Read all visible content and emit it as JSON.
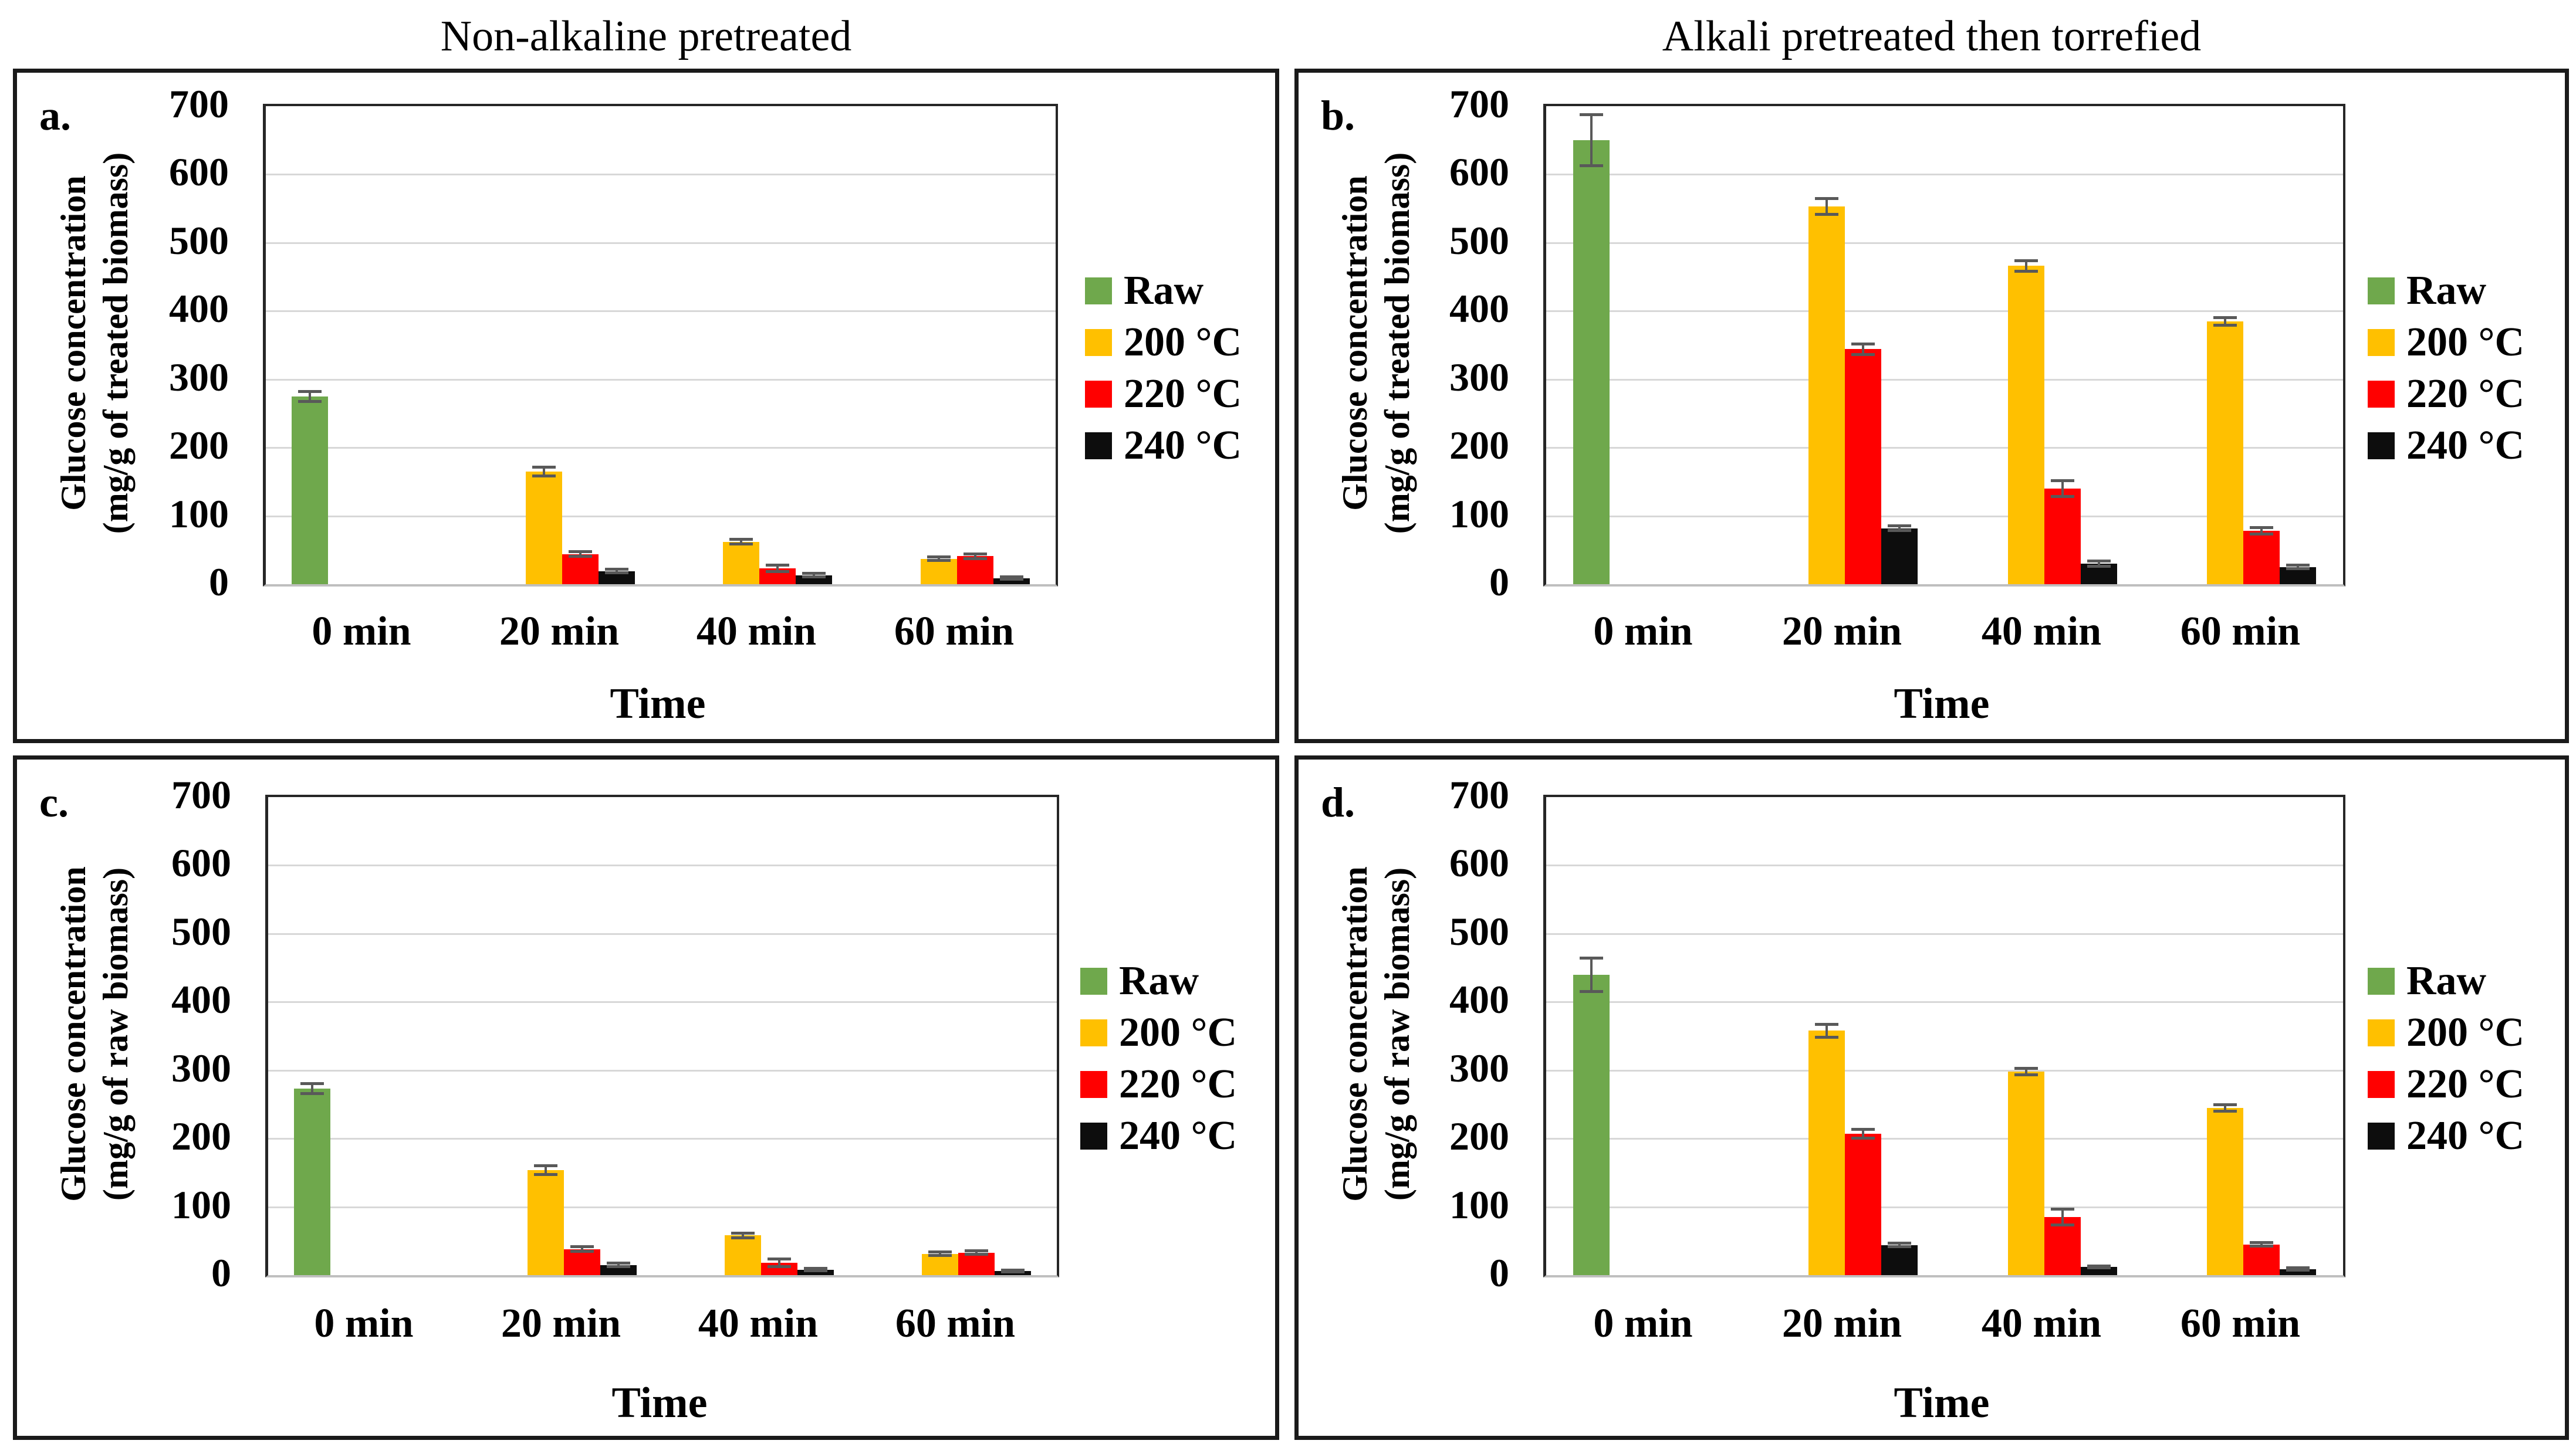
{
  "figure": {
    "column_titles": {
      "left": "Non-alkaline pretreated",
      "right": "Alkali pretreated then torrefied"
    }
  },
  "colors": {
    "raw_green": "#6FA84C",
    "c200_yellow": "#FFC000",
    "c220_red": "#FF0000",
    "c240_black": "#0D0D0D",
    "gridline": "#D8D8D8",
    "error_bar": "#595959",
    "plot_frame": "#262626",
    "panel_border": "#1A1A1A"
  },
  "legend": {
    "labels": [
      "Raw",
      "200 °C",
      "220 °C",
      "240 °C"
    ],
    "position": "right"
  },
  "chart_data": [
    {
      "id": "a",
      "panel_label": "a.",
      "type": "bar",
      "column_title": "Non-alkaline pretreated",
      "ylabel": [
        "Glucose concentration",
        "(mg/g of treated biomass)"
      ],
      "xlabel": "Time",
      "categories": [
        "0 min",
        "20 min",
        "40 min",
        "60 min"
      ],
      "ylim": [
        0,
        700
      ],
      "yticks": [
        0,
        100,
        200,
        300,
        400,
        500,
        600,
        700
      ],
      "grid": true,
      "legend_position": "right",
      "series": [
        {
          "name": "Raw",
          "color": "#6FA84C",
          "values": [
            275,
            null,
            null,
            null
          ],
          "errors": [
            8,
            null,
            null,
            null
          ]
        },
        {
          "name": "200 °C",
          "color": "#FFC000",
          "values": [
            null,
            165,
            62,
            37
          ],
          "errors": [
            null,
            7,
            4,
            3
          ]
        },
        {
          "name": "220 °C",
          "color": "#FF0000",
          "values": [
            null,
            44,
            23,
            41
          ],
          "errors": [
            null,
            4,
            5,
            4
          ]
        },
        {
          "name": "240 °C",
          "color": "#0D0D0D",
          "values": [
            null,
            19,
            13,
            9
          ],
          "errors": [
            null,
            3,
            3,
            2
          ]
        }
      ]
    },
    {
      "id": "b",
      "panel_label": "b.",
      "type": "bar",
      "column_title": "Alkali pretreated then torrefied",
      "ylabel": [
        "Glucose concentration",
        "(mg/g of treated biomass)"
      ],
      "xlabel": "Time",
      "categories": [
        "0 min",
        "20 min",
        "40 min",
        "60 min"
      ],
      "ylim": [
        0,
        700
      ],
      "yticks": [
        0,
        100,
        200,
        300,
        400,
        500,
        600,
        700
      ],
      "grid": true,
      "legend_position": "right",
      "series": [
        {
          "name": "Raw",
          "color": "#6FA84C",
          "values": [
            650,
            null,
            null,
            null
          ],
          "errors": [
            38,
            null,
            null,
            null
          ]
        },
        {
          "name": "200 °C",
          "color": "#FFC000",
          "values": [
            null,
            553,
            466,
            385
          ],
          "errors": [
            null,
            12,
            8,
            6
          ]
        },
        {
          "name": "220 °C",
          "color": "#FF0000",
          "values": [
            null,
            344,
            140,
            78
          ],
          "errors": [
            null,
            8,
            12,
            5
          ]
        },
        {
          "name": "240 °C",
          "color": "#0D0D0D",
          "values": [
            null,
            82,
            30,
            25
          ],
          "errors": [
            null,
            4,
            4,
            3
          ]
        }
      ]
    },
    {
      "id": "c",
      "panel_label": "c.",
      "type": "bar",
      "column_title": "Non-alkaline pretreated",
      "ylabel": [
        "Glucose concentration",
        "(mg/g of raw biomass)"
      ],
      "xlabel": "Time",
      "categories": [
        "0 min",
        "20 min",
        "40 min",
        "60 min"
      ],
      "ylim": [
        0,
        700
      ],
      "yticks": [
        0,
        100,
        200,
        300,
        400,
        500,
        600,
        700
      ],
      "grid": true,
      "legend_position": "right",
      "series": [
        {
          "name": "Raw",
          "color": "#6FA84C",
          "values": [
            273,
            null,
            null,
            null
          ],
          "errors": [
            8,
            null,
            null,
            null
          ]
        },
        {
          "name": "200 °C",
          "color": "#FFC000",
          "values": [
            null,
            154,
            58,
            31
          ],
          "errors": [
            null,
            7,
            4,
            3
          ]
        },
        {
          "name": "220 °C",
          "color": "#FF0000",
          "values": [
            null,
            38,
            18,
            33
          ],
          "errors": [
            null,
            4,
            6,
            3
          ]
        },
        {
          "name": "240 °C",
          "color": "#0D0D0D",
          "values": [
            null,
            15,
            8,
            6
          ],
          "errors": [
            null,
            3,
            2,
            2
          ]
        }
      ]
    },
    {
      "id": "d",
      "panel_label": "d.",
      "type": "bar",
      "column_title": "Alkali pretreated then torrefied",
      "ylabel": [
        "Glucose concentration",
        "(mg/g of raw biomass)"
      ],
      "xlabel": "Time",
      "categories": [
        "0 min",
        "20 min",
        "40 min",
        "60 min"
      ],
      "ylim": [
        0,
        700
      ],
      "yticks": [
        0,
        100,
        200,
        300,
        400,
        500,
        600,
        700
      ],
      "grid": true,
      "legend_position": "right",
      "series": [
        {
          "name": "Raw",
          "color": "#6FA84C",
          "values": [
            440,
            null,
            null,
            null
          ],
          "errors": [
            25,
            null,
            null,
            null
          ]
        },
        {
          "name": "200 °C",
          "color": "#FFC000",
          "values": [
            null,
            358,
            298,
            245
          ],
          "errors": [
            null,
            10,
            5,
            5
          ]
        },
        {
          "name": "220 °C",
          "color": "#FF0000",
          "values": [
            null,
            207,
            85,
            45
          ],
          "errors": [
            null,
            7,
            12,
            3
          ]
        },
        {
          "name": "240 °C",
          "color": "#0D0D0D",
          "values": [
            null,
            44,
            12,
            9
          ],
          "errors": [
            null,
            3,
            2,
            2
          ]
        }
      ]
    }
  ]
}
